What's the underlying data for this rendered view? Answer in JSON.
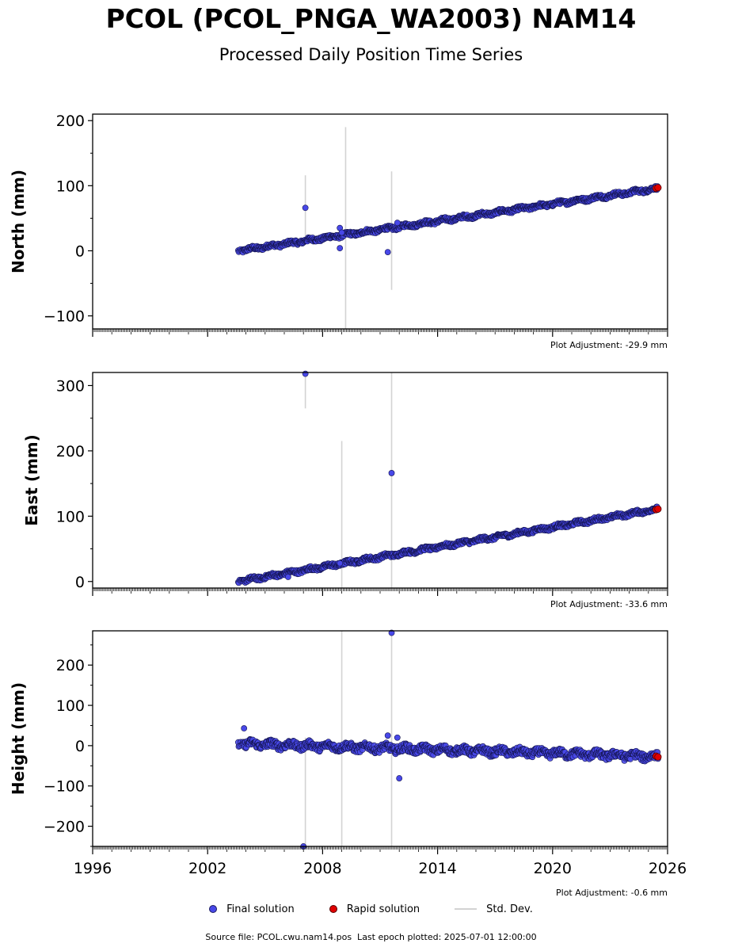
{
  "header": {
    "title": "PCOL (PCOL_PNGA_WA2003) NAM14",
    "subtitle": "Processed Daily Position Time Series"
  },
  "legend": {
    "final": "Final solution",
    "rapid": "Rapid solution",
    "stddev": "Std. Dev."
  },
  "colors": {
    "final": "#4848e8",
    "rapid": "#e00000",
    "stddev": "#d3d3d3"
  },
  "footer": {
    "source": "Source file: PCOL.cwu.nam14.pos  Last epoch plotted: 2025-07-01 12:00:00"
  },
  "chart_data": [
    {
      "type": "scatter",
      "ylabel": "North (mm)",
      "xlim": [
        1996,
        2026
      ],
      "ylim": [
        -120,
        210
      ],
      "yticks": [
        -100,
        0,
        100,
        200
      ],
      "xticks": [
        1996,
        2002,
        2008,
        2014,
        2020,
        2026
      ],
      "show_xtick_labels": false,
      "adjustment": "Plot Adjustment: -29.9 mm",
      "trend": [
        [
          2003.6,
          0
        ],
        [
          2025.5,
          96
        ]
      ],
      "scatter_noise": 3,
      "outliers": [
        [
          2007.1,
          66
        ],
        [
          2008.9,
          35
        ],
        [
          2008.9,
          4
        ],
        [
          2011.4,
          -2
        ],
        [
          2011.9,
          43
        ],
        [
          2009.0,
          28
        ]
      ],
      "std_bars": [
        [
          2007.1,
          14,
          116
        ],
        [
          2009.2,
          -120,
          190
        ],
        [
          2011.6,
          -60,
          122
        ]
      ],
      "rapid": [
        [
          2025.4,
          96
        ],
        [
          2025.5,
          97
        ]
      ]
    },
    {
      "type": "scatter",
      "ylabel": "East (mm)",
      "xlim": [
        1996,
        2026
      ],
      "ylim": [
        -10,
        320
      ],
      "yticks": [
        0,
        100,
        200,
        300
      ],
      "xticks": [
        1996,
        2002,
        2008,
        2014,
        2020,
        2026
      ],
      "show_xtick_labels": false,
      "adjustment": "Plot Adjustment: -33.6 mm",
      "trend": [
        [
          2003.6,
          0
        ],
        [
          2025.5,
          111
        ]
      ],
      "scatter_noise": 3,
      "outliers": [
        [
          2007.1,
          318
        ],
        [
          2011.6,
          166
        ],
        [
          2008.9,
          28
        ],
        [
          2006.2,
          7
        ]
      ],
      "std_bars": [
        [
          2007.1,
          265,
          320
        ],
        [
          2009.0,
          -10,
          215
        ],
        [
          2011.6,
          -10,
          320
        ]
      ],
      "rapid": [
        [
          2025.4,
          110
        ],
        [
          2025.5,
          111
        ]
      ]
    },
    {
      "type": "scatter",
      "ylabel": "Height (mm)",
      "xlim": [
        1996,
        2026
      ],
      "ylim": [
        -250,
        285
      ],
      "yticks": [
        -200,
        -100,
        0,
        100,
        200
      ],
      "xticks": [
        1996,
        2002,
        2008,
        2014,
        2020,
        2026
      ],
      "show_xtick_labels": true,
      "adjustment": "Plot Adjustment: -0.6 mm",
      "trend": [
        [
          2003.6,
          5
        ],
        [
          2025.5,
          -27
        ]
      ],
      "scatter_noise": 9,
      "outliers": [
        [
          2003.9,
          43
        ],
        [
          2011.6,
          280
        ],
        [
          2012.0,
          -81
        ],
        [
          2007.0,
          -250
        ],
        [
          2011.4,
          25
        ],
        [
          2011.9,
          20
        ]
      ],
      "std_bars": [
        [
          2007.1,
          -250,
          20
        ],
        [
          2009.0,
          -250,
          285
        ],
        [
          2011.6,
          -250,
          285
        ]
      ],
      "rapid": [
        [
          2025.4,
          -26
        ],
        [
          2025.5,
          -28
        ]
      ]
    }
  ]
}
